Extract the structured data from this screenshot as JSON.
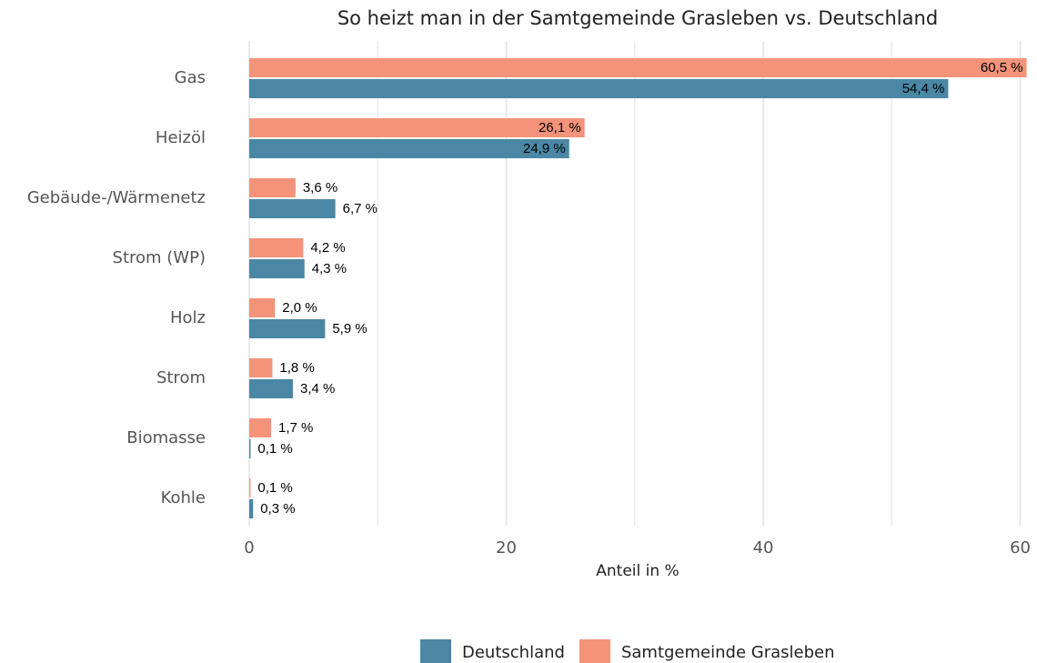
{
  "chart_data": {
    "type": "bar",
    "orientation": "horizontal",
    "title": "So heizt man in der Samtgemeinde Grasleben vs. Deutschland",
    "x_label": "Anteil in %",
    "categories": [
      "Gas",
      "Heizöl",
      "Gebäude-/Wärmenetz",
      "Strom (WP)",
      "Holz",
      "Strom",
      "Biomasse",
      "Kohle"
    ],
    "series": [
      {
        "name": "Deutschland",
        "color": "#4a87a5",
        "values": [
          54.4,
          24.9,
          6.7,
          4.3,
          5.9,
          3.4,
          0.1,
          0.3
        ],
        "value_labels": [
          "54,4 %",
          "24,9 %",
          "6,7 %",
          "4,3 %",
          "5,9 %",
          "3,4 %",
          "0,1 %",
          "0,3 %"
        ]
      },
      {
        "name": "Samtgemeinde Grasleben",
        "color": "#f4937a",
        "values": [
          60.5,
          26.1,
          3.6,
          4.2,
          2.0,
          1.8,
          1.7,
          0.1
        ],
        "value_labels": [
          "60,5 %",
          "26,1 %",
          "3,6 %",
          "4,2 %",
          "2,0 %",
          "1,8 %",
          "1,7 %",
          "0,1 %"
        ]
      }
    ],
    "xlim": [
      0,
      60.6
    ],
    "xticks": [
      0,
      20,
      40,
      60
    ],
    "xminorticks": [
      10,
      30,
      50
    ],
    "grid": true,
    "legend": "bottom"
  }
}
